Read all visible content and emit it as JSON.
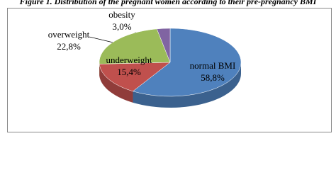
{
  "chart_data": {
    "type": "pie3d",
    "title": "Figure 1. Distribution of the pregnant women according to their pre-pregnancy BMI",
    "categories": [
      "normal BMI",
      "underweight",
      "overweight",
      "obesity"
    ],
    "values": [
      58.8,
      15.4,
      22.8,
      3.0
    ],
    "value_labels": [
      "58,8%",
      "15,4%",
      "22,8%",
      "3,0%"
    ],
    "colors": [
      "#4f81bd",
      "#c0504d",
      "#9bbb59",
      "#8064a2"
    ]
  }
}
